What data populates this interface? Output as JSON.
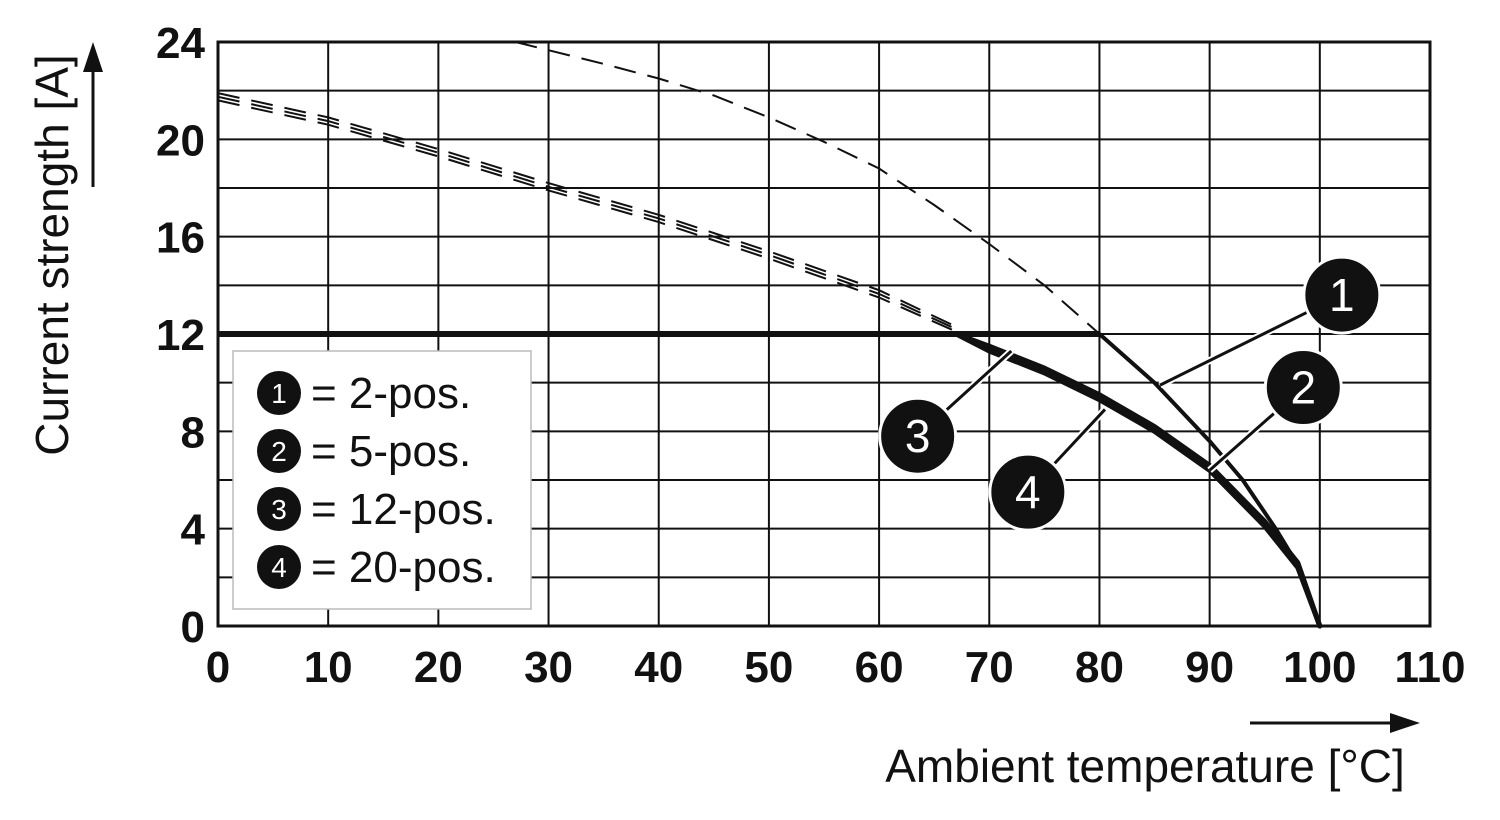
{
  "chart_data": {
    "type": "line",
    "xlabel": "Ambient temperature [°C]",
    "ylabel": "Current strength [A]",
    "xlim": [
      0,
      110
    ],
    "ylim": [
      0,
      24
    ],
    "x_ticks": [
      0,
      10,
      20,
      30,
      40,
      50,
      60,
      70,
      80,
      90,
      100,
      110
    ],
    "y_ticks": [
      0,
      4,
      8,
      12,
      16,
      20,
      24
    ],
    "y_minor_step": 2,
    "grid": true,
    "legend_placement": "bottom-left",
    "current_limit": 12,
    "legend": [
      {
        "id": "1",
        "label": "= 2-pos."
      },
      {
        "id": "2",
        "label": "= 5-pos."
      },
      {
        "id": "3",
        "label": "= 12-pos."
      },
      {
        "id": "4",
        "label": "= 20-pos."
      }
    ],
    "series": [
      {
        "name": "1",
        "derating_dashed": {
          "x": [
            27,
            35,
            40,
            45,
            50,
            55,
            60,
            65,
            70,
            75,
            80
          ],
          "y": [
            24,
            23.1,
            22.5,
            21.8,
            20.9,
            19.9,
            18.8,
            17.3,
            15.7,
            14.0,
            12
          ]
        },
        "solid": {
          "x": [
            80,
            85,
            90,
            93,
            96,
            98,
            100
          ],
          "y": [
            12,
            10.0,
            7.6,
            6.0,
            4.0,
            2.5,
            0
          ]
        }
      },
      {
        "name": "2",
        "derating_dashed": {
          "x": [
            0,
            10,
            20,
            30,
            40,
            50,
            60,
            67
          ],
          "y": [
            21.9,
            20.9,
            19.6,
            18.2,
            16.9,
            15.4,
            13.8,
            12.3
          ]
        },
        "solid": {
          "x": [
            67,
            70,
            75,
            80,
            85,
            90,
            95,
            98,
            100
          ],
          "y": [
            12,
            11.5,
            10.6,
            9.5,
            8.2,
            6.6,
            4.3,
            2.6,
            0
          ]
        }
      },
      {
        "name": "3",
        "derating_dashed": {
          "x": [
            0,
            10,
            20,
            30,
            40,
            50,
            60,
            67
          ],
          "y": [
            21.6,
            20.6,
            19.3,
            17.9,
            16.6,
            15.1,
            13.5,
            12.1
          ]
        },
        "solid": {
          "x": [
            67,
            70,
            75,
            80,
            85,
            90,
            95,
            98,
            100
          ],
          "y": [
            12,
            11.3,
            10.4,
            9.3,
            8.0,
            6.4,
            4.1,
            2.4,
            0
          ]
        }
      },
      {
        "name": "4",
        "derating_dashed": {
          "x": [
            0,
            10,
            20,
            30,
            40,
            50,
            60,
            67
          ],
          "y": [
            21.75,
            20.75,
            19.45,
            18.05,
            16.75,
            15.25,
            13.65,
            12.2
          ]
        },
        "solid": {
          "x": [
            67,
            70,
            75,
            80,
            85,
            90,
            95,
            98,
            100
          ],
          "y": [
            12,
            11.4,
            10.5,
            9.4,
            8.1,
            6.5,
            4.2,
            2.5,
            0
          ]
        }
      }
    ],
    "callouts": [
      {
        "id": "1",
        "at": [
          102,
          13.6
        ],
        "points_to": [
          85.5,
          9.9
        ]
      },
      {
        "id": "2",
        "at": [
          98.5,
          9.8
        ],
        "points_to": [
          90,
          6.4
        ]
      },
      {
        "id": "3",
        "at": [
          63.5,
          7.8
        ],
        "points_to": [
          72,
          11.3
        ]
      },
      {
        "id": "4",
        "at": [
          73.5,
          5.5
        ],
        "points_to": [
          80.5,
          8.9
        ]
      }
    ]
  }
}
